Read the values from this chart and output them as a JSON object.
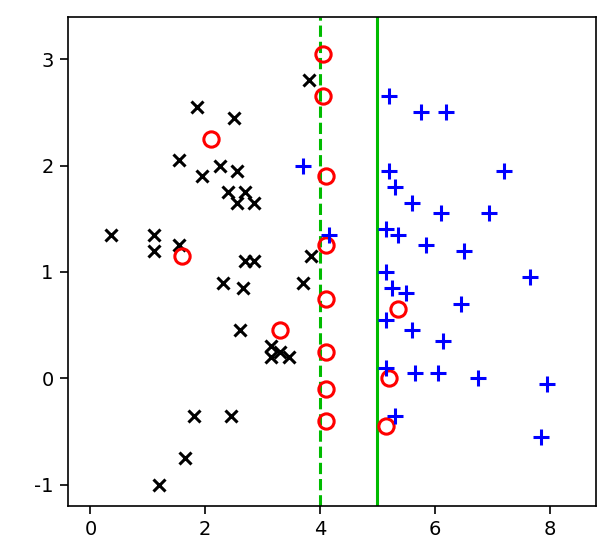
{
  "black_x": [
    [
      3.8,
      2.8
    ],
    [
      1.85,
      2.55
    ],
    [
      2.5,
      2.45
    ],
    [
      1.55,
      2.05
    ],
    [
      1.95,
      1.9
    ],
    [
      2.25,
      2.0
    ],
    [
      2.55,
      1.95
    ],
    [
      2.4,
      1.75
    ],
    [
      2.7,
      1.75
    ],
    [
      2.55,
      1.65
    ],
    [
      2.85,
      1.65
    ],
    [
      0.35,
      1.35
    ],
    [
      1.1,
      1.35
    ],
    [
      1.1,
      1.2
    ],
    [
      1.55,
      1.25
    ],
    [
      2.7,
      1.1
    ],
    [
      2.85,
      1.1
    ],
    [
      2.3,
      0.9
    ],
    [
      2.65,
      0.85
    ],
    [
      2.6,
      0.45
    ],
    [
      3.15,
      0.3
    ],
    [
      3.3,
      0.25
    ],
    [
      3.15,
      0.2
    ],
    [
      3.45,
      0.2
    ],
    [
      1.8,
      -0.35
    ],
    [
      2.45,
      -0.35
    ],
    [
      1.65,
      -0.75
    ],
    [
      1.2,
      -1.0
    ],
    [
      3.85,
      1.15
    ],
    [
      3.7,
      0.9
    ]
  ],
  "red_o": [
    [
      2.1,
      2.25
    ],
    [
      4.05,
      3.05
    ],
    [
      4.05,
      2.65
    ],
    [
      1.6,
      1.15
    ],
    [
      4.1,
      1.9
    ],
    [
      4.1,
      1.25
    ],
    [
      4.1,
      0.75
    ],
    [
      3.3,
      0.45
    ],
    [
      4.1,
      0.25
    ],
    [
      4.1,
      -0.1
    ],
    [
      4.1,
      -0.4
    ],
    [
      5.15,
      -0.45
    ],
    [
      5.2,
      0.0
    ],
    [
      5.35,
      0.65
    ]
  ],
  "blue_plus": [
    [
      3.7,
      2.0
    ],
    [
      4.15,
      1.35
    ],
    [
      5.2,
      2.65
    ],
    [
      5.75,
      2.5
    ],
    [
      6.2,
      2.5
    ],
    [
      7.2,
      1.95
    ],
    [
      5.2,
      1.95
    ],
    [
      5.3,
      1.8
    ],
    [
      5.6,
      1.65
    ],
    [
      6.1,
      1.55
    ],
    [
      6.95,
      1.55
    ],
    [
      5.15,
      1.4
    ],
    [
      5.35,
      1.35
    ],
    [
      5.85,
      1.25
    ],
    [
      6.5,
      1.2
    ],
    [
      7.65,
      0.95
    ],
    [
      5.15,
      1.0
    ],
    [
      5.25,
      0.85
    ],
    [
      5.5,
      0.8
    ],
    [
      6.45,
      0.7
    ],
    [
      5.15,
      0.55
    ],
    [
      5.6,
      0.45
    ],
    [
      6.15,
      0.35
    ],
    [
      5.15,
      0.1
    ],
    [
      5.65,
      0.05
    ],
    [
      6.05,
      0.05
    ],
    [
      6.75,
      0.0
    ],
    [
      7.95,
      -0.05
    ],
    [
      5.3,
      -0.35
    ],
    [
      7.85,
      -0.55
    ]
  ],
  "dashed_line_x": 4.0,
  "solid_line_x": 5.0,
  "xlim": [
    -0.4,
    8.8
  ],
  "ylim": [
    -1.2,
    3.4
  ],
  "xticks": [
    0,
    2,
    4,
    6,
    8
  ],
  "yticks": [
    -1,
    0,
    1,
    2,
    3
  ],
  "line_color": "#00BB00",
  "black_color": "#000000",
  "red_color": "#FF0000",
  "blue_color": "#0000FF",
  "figwidth": 6.14,
  "figheight": 5.56,
  "dpi": 100
}
